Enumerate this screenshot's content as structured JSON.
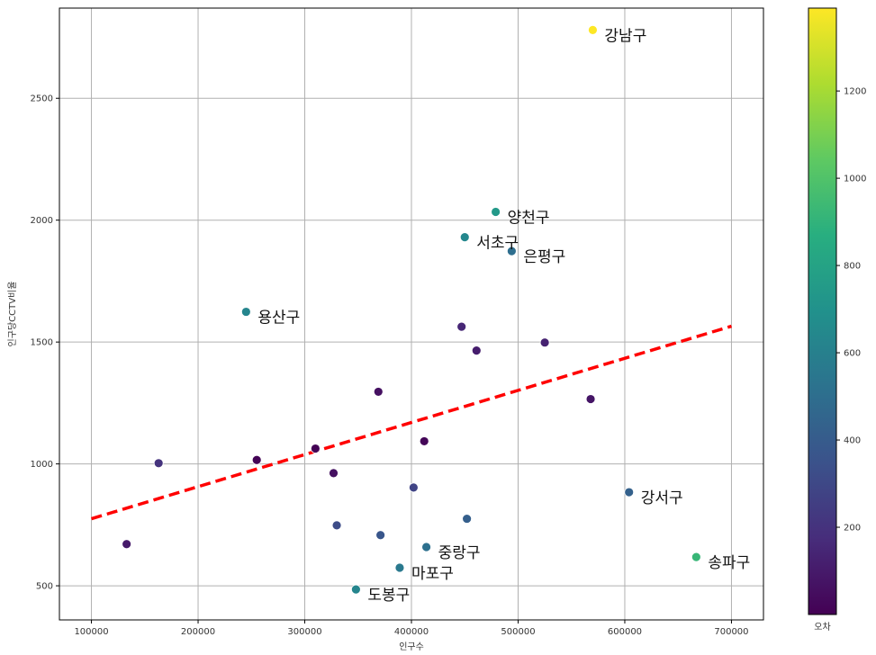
{
  "chart_data": {
    "type": "scatter",
    "xlabel": "인구수",
    "ylabel": "인구당CCTV비율",
    "xlim": [
      70000,
      730000
    ],
    "ylim": [
      360,
      2870
    ],
    "xticks": [
      100000,
      200000,
      300000,
      400000,
      500000,
      600000,
      700000
    ],
    "yticks": [
      500,
      1000,
      1500,
      2000,
      2500
    ],
    "grid": true,
    "colormap": "viridis",
    "colorbar": {
      "label": "오차",
      "ticks": [
        200,
        400,
        600,
        800,
        1000,
        1200
      ],
      "range": [
        0,
        1390
      ]
    },
    "trend_line": {
      "style": "dashed",
      "color": "#ff0000",
      "x": [
        100000,
        700000
      ],
      "y": [
        775,
        1565
      ]
    },
    "points": [
      {
        "x": 570000,
        "y": 2780,
        "c": 1390,
        "label": "강남구"
      },
      {
        "x": 479000,
        "y": 2034,
        "c": 740,
        "label": "양천구"
      },
      {
        "x": 450000,
        "y": 1930,
        "c": 640,
        "label": "서초구"
      },
      {
        "x": 494000,
        "y": 1873,
        "c": 500,
        "label": "은평구"
      },
      {
        "x": 245000,
        "y": 1624,
        "c": 630,
        "label": "용산구"
      },
      {
        "x": 604000,
        "y": 884,
        "c": 430,
        "label": "강서구"
      },
      {
        "x": 667000,
        "y": 618,
        "c": 920,
        "label": "송파구"
      },
      {
        "x": 414000,
        "y": 659,
        "c": 510,
        "label": "중랑구"
      },
      {
        "x": 389000,
        "y": 574,
        "c": 560,
        "label": "마포구"
      },
      {
        "x": 348000,
        "y": 485,
        "c": 630,
        "label": "도봉구"
      },
      {
        "x": 447000,
        "y": 1563,
        "c": 150
      },
      {
        "x": 461000,
        "y": 1465,
        "c": 110
      },
      {
        "x": 525000,
        "y": 1498,
        "c": 130
      },
      {
        "x": 369000,
        "y": 1296,
        "c": 60
      },
      {
        "x": 568000,
        "y": 1266,
        "c": 80
      },
      {
        "x": 412000,
        "y": 1093,
        "c": 20
      },
      {
        "x": 310000,
        "y": 1063,
        "c": 5
      },
      {
        "x": 163000,
        "y": 1003,
        "c": 200
      },
      {
        "x": 255000,
        "y": 1016,
        "c": 10
      },
      {
        "x": 327000,
        "y": 962,
        "c": 60
      },
      {
        "x": 402000,
        "y": 903,
        "c": 280
      },
      {
        "x": 452000,
        "y": 775,
        "c": 420
      },
      {
        "x": 330000,
        "y": 748,
        "c": 320
      },
      {
        "x": 371000,
        "y": 708,
        "c": 370
      },
      {
        "x": 133000,
        "y": 671,
        "c": 100
      }
    ]
  }
}
